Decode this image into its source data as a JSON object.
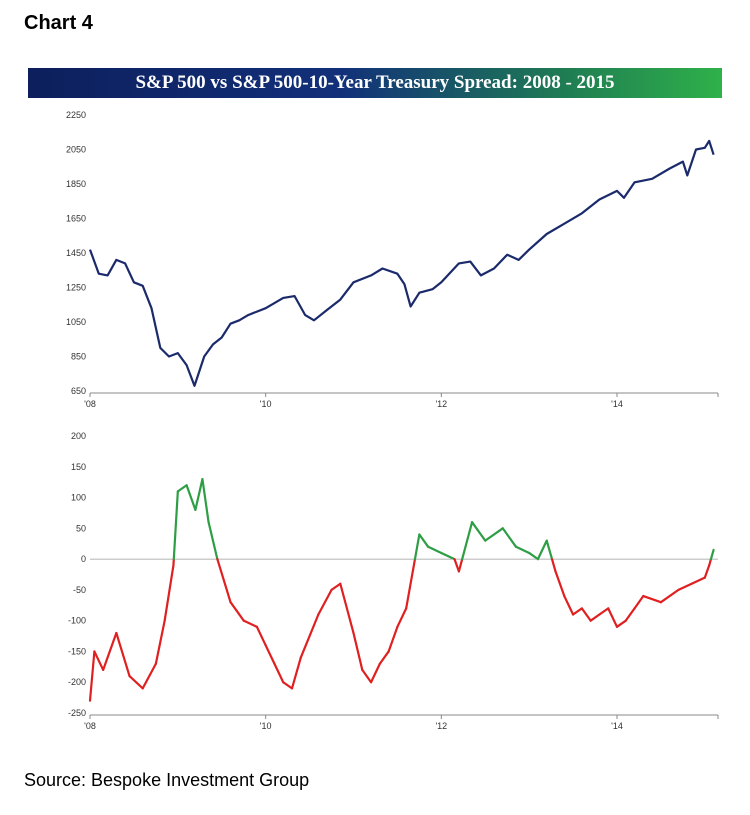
{
  "header": {
    "label": "Chart 4"
  },
  "footer": {
    "source": "Source: Bespoke Investment Group"
  },
  "chart_data": [
    {
      "type": "line",
      "title": "S&P 500 vs S&P 500-10-Year Treasury Spread: 2008 - 2015",
      "xlabel": "",
      "ylabel": "",
      "x_range": [
        2008,
        2015.15
      ],
      "ylim": [
        650,
        2250
      ],
      "yticks": [
        650,
        850,
        1050,
        1250,
        1450,
        1650,
        1850,
        2050,
        2250
      ],
      "xticks": [
        {
          "value": 2008,
          "label": "'08"
        },
        {
          "value": 2010,
          "label": "'10"
        },
        {
          "value": 2012,
          "label": "'12"
        },
        {
          "value": 2014,
          "label": "'14"
        }
      ],
      "grid": false,
      "legend": "none",
      "series": [
        {
          "color": "#1b2a6b",
          "x": [
            2008.0,
            2008.1,
            2008.2,
            2008.3,
            2008.4,
            2008.5,
            2008.6,
            2008.7,
            2008.8,
            2008.9,
            2009.0,
            2009.1,
            2009.19,
            2009.3,
            2009.4,
            2009.5,
            2009.6,
            2009.7,
            2009.8,
            2009.9,
            2010.0,
            2010.2,
            2010.33,
            2010.45,
            2010.55,
            2010.7,
            2010.85,
            2011.0,
            2011.2,
            2011.33,
            2011.5,
            2011.58,
            2011.65,
            2011.75,
            2011.9,
            2012.0,
            2012.2,
            2012.33,
            2012.45,
            2012.6,
            2012.75,
            2012.88,
            2013.0,
            2013.2,
            2013.4,
            2013.6,
            2013.8,
            2014.0,
            2014.08,
            2014.2,
            2014.4,
            2014.6,
            2014.75,
            2014.8,
            2014.9,
            2015.0,
            2015.05,
            2015.1
          ],
          "values": [
            1470,
            1330,
            1320,
            1410,
            1390,
            1280,
            1260,
            1130,
            900,
            850,
            870,
            800,
            680,
            850,
            920,
            960,
            1040,
            1060,
            1090,
            1110,
            1130,
            1190,
            1200,
            1090,
            1060,
            1120,
            1180,
            1280,
            1320,
            1360,
            1330,
            1270,
            1140,
            1220,
            1240,
            1280,
            1390,
            1400,
            1320,
            1360,
            1440,
            1410,
            1470,
            1560,
            1620,
            1680,
            1760,
            1810,
            1770,
            1860,
            1880,
            1940,
            1980,
            1900,
            2050,
            2060,
            2100,
            2020
          ]
        }
      ]
    },
    {
      "type": "area",
      "title": "",
      "xlabel": "",
      "ylabel": "",
      "x_range": [
        2008,
        2015.15
      ],
      "ylim": [
        -250,
        200
      ],
      "yticks": [
        -250,
        -200,
        -150,
        -100,
        -50,
        0,
        50,
        100,
        150,
        200
      ],
      "xticks": [
        {
          "value": 2008,
          "label": "'08"
        },
        {
          "value": 2010,
          "label": "'10"
        },
        {
          "value": 2012,
          "label": "'12"
        },
        {
          "value": 2014,
          "label": "'14"
        }
      ],
      "grid": false,
      "legend": "none",
      "colors": {
        "positive": "#2e9e45",
        "negative": "#e02020"
      },
      "series": [
        {
          "x": [
            2008.0,
            2008.05,
            2008.15,
            2008.3,
            2008.45,
            2008.6,
            2008.75,
            2008.85,
            2008.95,
            2009.0,
            2009.1,
            2009.2,
            2009.28,
            2009.35,
            2009.45,
            2009.6,
            2009.75,
            2009.9,
            2010.0,
            2010.1,
            2010.2,
            2010.3,
            2010.4,
            2010.6,
            2010.75,
            2010.85,
            2011.0,
            2011.1,
            2011.2,
            2011.3,
            2011.4,
            2011.5,
            2011.6,
            2011.7,
            2011.75,
            2011.85,
            2012.0,
            2012.15,
            2012.2,
            2012.35,
            2012.5,
            2012.7,
            2012.85,
            2013.0,
            2013.1,
            2013.2,
            2013.3,
            2013.4,
            2013.5,
            2013.6,
            2013.7,
            2013.8,
            2013.9,
            2014.0,
            2014.1,
            2014.2,
            2014.3,
            2014.5,
            2014.7,
            2014.85,
            2015.0,
            2015.05,
            2015.1
          ],
          "values": [
            -230,
            -150,
            -180,
            -120,
            -190,
            -210,
            -170,
            -100,
            -10,
            110,
            120,
            80,
            130,
            60,
            0,
            -70,
            -100,
            -110,
            -140,
            -170,
            -200,
            -210,
            -160,
            -90,
            -50,
            -40,
            -120,
            -180,
            -200,
            -170,
            -150,
            -110,
            -80,
            0,
            40,
            20,
            10,
            0,
            -20,
            60,
            30,
            50,
            20,
            10,
            0,
            30,
            -20,
            -60,
            -90,
            -80,
            -100,
            -90,
            -80,
            -110,
            -100,
            -80,
            -60,
            -70,
            -50,
            -40,
            -30,
            -10,
            15
          ]
        }
      ]
    }
  ]
}
